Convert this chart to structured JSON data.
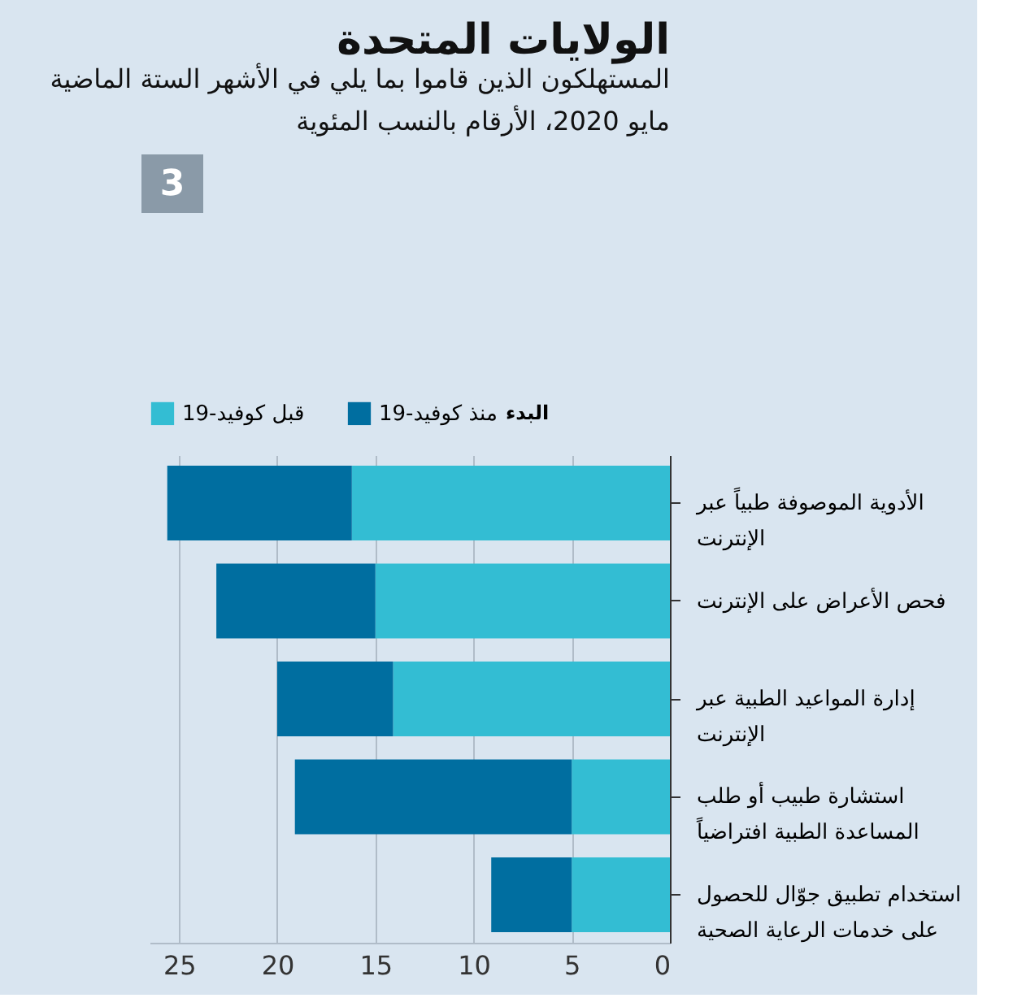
{
  "chart_data": {
    "type": "bar",
    "orientation": "horizontal",
    "stacked": true,
    "title": "الولايات المتحدة",
    "subtitle": "المستهلكون الذين قاموا بما يلي في الأشهر الستة الماضية\nمايو 2020، الأرقام بالنسب المئوية",
    "annotations": [
      "3"
    ],
    "legend_title": "البدء",
    "categories": [
      "الأدوية الموصوفة طبياً عبر\nالإنترنت",
      "فحص الأعراض على الإنترنت",
      "إدارة المواعيد الطبية عبر\nالإنترنت",
      "استشارة طبيب أو طلب\nالمساعدة الطبية افتراضياً",
      "استخدام تطبيق جوّال للحصول\nعلى خدمات الرعاية الصحية"
    ],
    "series": [
      {
        "name": "قبل كوفيد-19",
        "color": "#33bdd3",
        "values": [
          16.2,
          15.0,
          14.1,
          5.0,
          5.0
        ]
      },
      {
        "name": "منذ كوفيد-19",
        "color": "#006ea0",
        "values": [
          9.4,
          8.1,
          5.9,
          14.1,
          4.1
        ]
      }
    ],
    "xlim": [
      26.5,
      0
    ],
    "xticks": [
      25,
      20,
      15,
      10,
      5,
      0
    ],
    "grid": "x",
    "legend": "top"
  }
}
